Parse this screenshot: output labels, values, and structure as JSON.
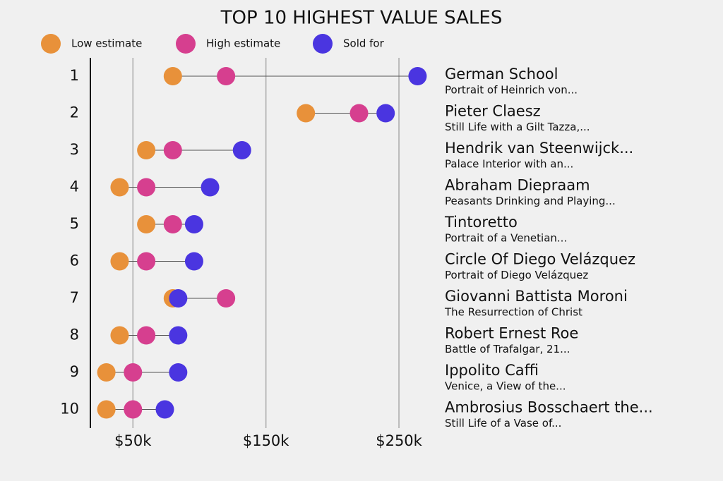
{
  "chart_data": {
    "type": "dot",
    "title": "TOP 10 HIGHEST VALUE SALES",
    "categories": [
      "1",
      "2",
      "3",
      "4",
      "5",
      "6",
      "7",
      "8",
      "9",
      "10"
    ],
    "artists": [
      "German School",
      "Pieter Claesz",
      "Hendrik van Steenwijck...",
      "Abraham Diepraam",
      "Tintoretto",
      "Circle Of Diego Velázquez",
      "Giovanni Battista Moroni",
      "Robert Ernest Roe",
      "Ippolito Caffi",
      "Ambrosius Bosschaert the..."
    ],
    "works": [
      "Portrait of Heinrich von...",
      "Still Life with a Gilt Tazza,...",
      "Palace Interior with an...",
      "Peasants Drinking and Playing...",
      "Portrait of a Venetian...",
      "Portrait of Diego Velázquez",
      "The Resurrection of Christ",
      "Battle of Trafalgar, 21...",
      "Venice, a View of the...",
      "Still Life of a Vase of..."
    ],
    "series": [
      {
        "name": "Low estimate",
        "color": "#e8913a",
        "values": [
          80000,
          180000,
          60000,
          40000,
          60000,
          40000,
          80000,
          40000,
          30000,
          30000
        ]
      },
      {
        "name": "High estimate",
        "color": "#d63f8f",
        "values": [
          120000,
          220000,
          80000,
          60000,
          80000,
          60000,
          120000,
          60000,
          50000,
          50000
        ]
      },
      {
        "name": "Sold for",
        "color": "#4a35e0",
        "values": [
          264000,
          240000,
          132000,
          108000,
          96000,
          96000,
          84000,
          84000,
          84000,
          74000
        ]
      }
    ],
    "xlim": [
      18000,
      280000
    ],
    "xticks": [
      {
        "value": 50000,
        "label": "$50k"
      },
      {
        "value": 150000,
        "label": "$150k"
      },
      {
        "value": 250000,
        "label": "$250k"
      }
    ],
    "grid": true
  }
}
